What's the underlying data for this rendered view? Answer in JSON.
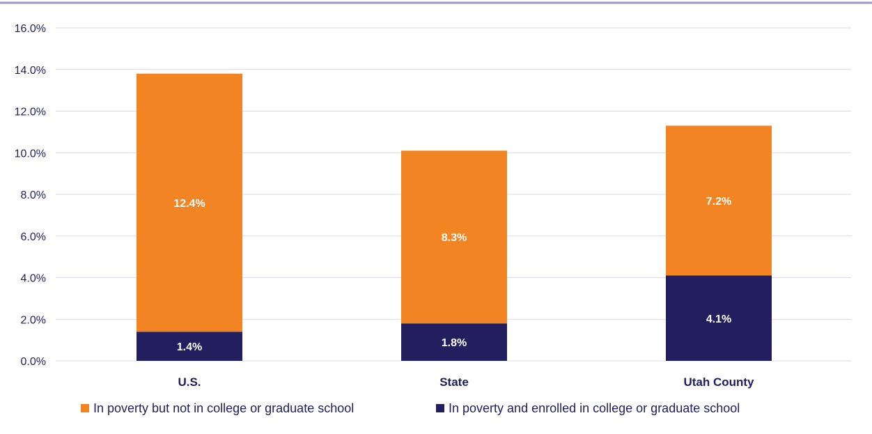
{
  "chart_data": {
    "type": "bar",
    "stacked": true,
    "categories": [
      "U.S.",
      "State",
      "Utah County"
    ],
    "series": [
      {
        "name": "In poverty and enrolled in college or graduate school",
        "color": "#231f5e",
        "values": [
          1.4,
          1.8,
          4.1
        ],
        "labels": [
          "1.4%",
          "1.8%",
          "4.1%"
        ]
      },
      {
        "name": "In poverty but not in college or graduate school",
        "color": "#f28423",
        "values": [
          12.4,
          8.3,
          7.2
        ],
        "labels": [
          "12.4%",
          "8.3%",
          "7.2%"
        ]
      }
    ],
    "ylim": [
      0,
      16
    ],
    "yticks": [
      "0.0%",
      "2.0%",
      "4.0%",
      "6.0%",
      "8.0%",
      "10.0%",
      "12.0%",
      "14.0%",
      "16.0%"
    ],
    "grid": true,
    "legend_position": "bottom",
    "legend_order": [
      1,
      0
    ]
  },
  "colors": {
    "top_rule": "#9b96c9",
    "gridline": "#d9d7ec",
    "text": "#1f1c5c"
  }
}
